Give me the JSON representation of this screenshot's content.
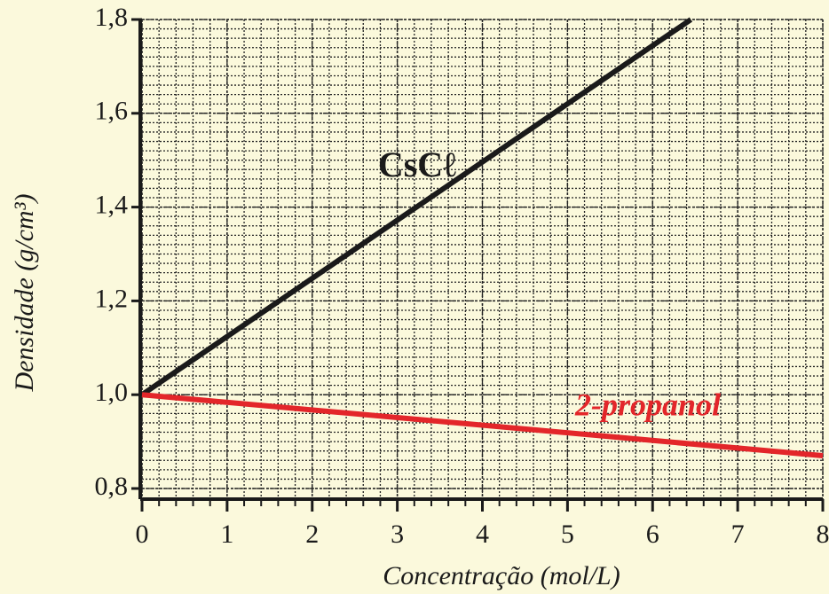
{
  "chart_data": {
    "type": "line",
    "x_label": "Concentração (mol/L)",
    "y_label": "Densidade (g/cm³)",
    "xlim": [
      0,
      8
    ],
    "ylim": [
      0.8,
      1.8
    ],
    "xticks": [
      0,
      1,
      2,
      3,
      4,
      5,
      6,
      7,
      8
    ],
    "yticks": [
      {
        "value": 0.8,
        "label": "0,8"
      },
      {
        "value": 1.0,
        "label": "1,0"
      },
      {
        "value": 1.2,
        "label": "1,2"
      },
      {
        "value": 1.4,
        "label": "1,4"
      },
      {
        "value": 1.6,
        "label": "1,6"
      },
      {
        "value": 1.8,
        "label": "1,8"
      }
    ],
    "grid": true,
    "series": [
      {
        "name": "CsCℓ",
        "color": "#1a1a1a",
        "x": [
          0,
          6.45
        ],
        "values": [
          1.0,
          1.8
        ]
      },
      {
        "name": "2-propanol",
        "color": "#e3262a",
        "x": [
          0,
          8
        ],
        "values": [
          1.0,
          0.87
        ]
      }
    ]
  }
}
